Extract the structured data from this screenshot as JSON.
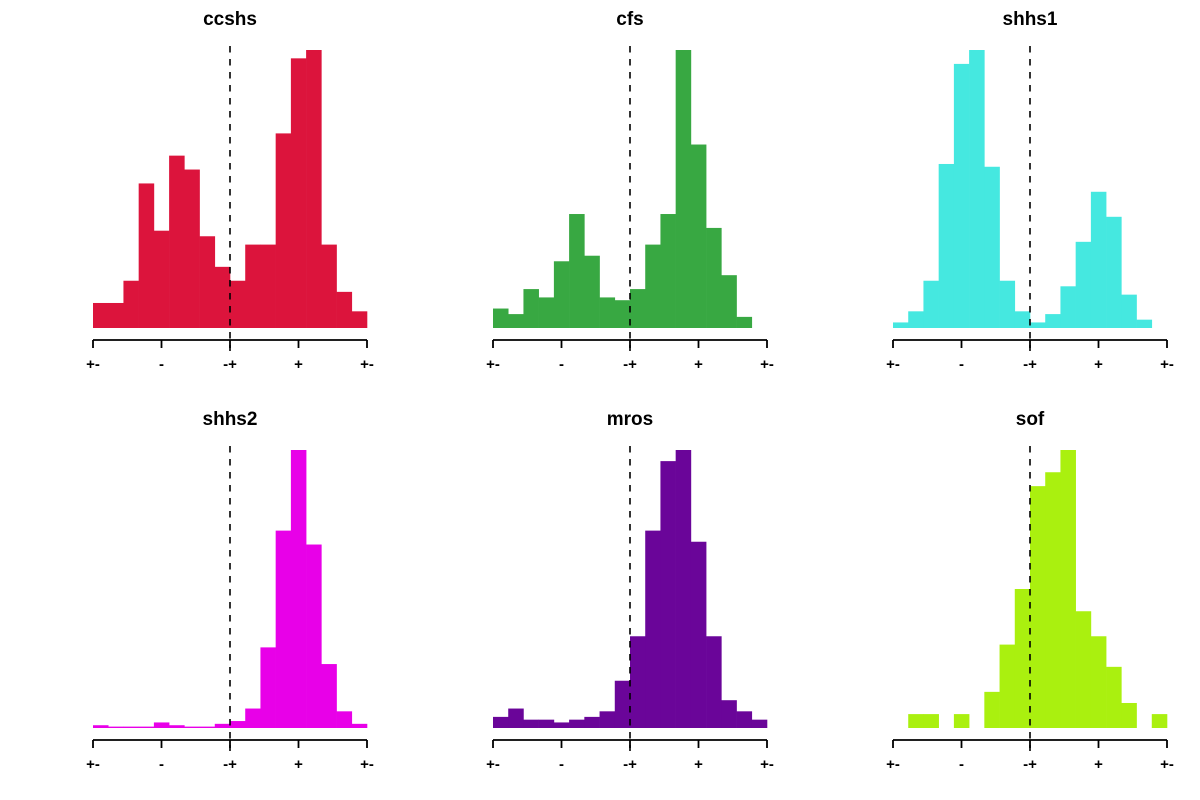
{
  "figure": {
    "background_color": "#ffffff",
    "axis_color": "#000000",
    "text_color": "#000000",
    "layout": "2x3 grid of histograms"
  },
  "chart_data": [
    {
      "type": "bar",
      "title": "ccshs",
      "color": "#DC143C",
      "bins": 18,
      "values": [
        9,
        9,
        17,
        52,
        35,
        62,
        57,
        33,
        22,
        17,
        30,
        30,
        70,
        97,
        100,
        30,
        13,
        6
      ],
      "ylim": [
        0,
        100
      ],
      "xlabel": "",
      "ylabel": "",
      "x_tick_labels": [
        "+-",
        "-",
        "-+",
        "+",
        "+-"
      ],
      "ref_line_at_label": "-+",
      "ref_line_style": "dashed",
      "grid": "off",
      "legend": "none"
    },
    {
      "type": "bar",
      "title": "cfs",
      "color": "#38A842",
      "bins": 18,
      "values": [
        7,
        5,
        14,
        11,
        24,
        41,
        26,
        11,
        10,
        14,
        30,
        41,
        100,
        66,
        36,
        19,
        4,
        0
      ],
      "ylim": [
        0,
        100
      ],
      "xlabel": "",
      "ylabel": "",
      "x_tick_labels": [
        "+-",
        "-",
        "-+",
        "+",
        "+-"
      ],
      "ref_line_at_label": "-+",
      "ref_line_style": "dashed",
      "grid": "off",
      "legend": "none"
    },
    {
      "type": "bar",
      "title": "shhs1",
      "color": "#45E8E0",
      "bins": 18,
      "values": [
        2,
        6,
        17,
        59,
        95,
        100,
        58,
        17,
        6,
        2,
        5,
        15,
        31,
        49,
        40,
        12,
        3,
        0
      ],
      "ylim": [
        0,
        100
      ],
      "xlabel": "",
      "ylabel": "",
      "x_tick_labels": [
        "+-",
        "-",
        "-+",
        "+",
        "+-"
      ],
      "ref_line_at_label": "-+",
      "ref_line_style": "dashed",
      "grid": "off",
      "legend": "none"
    },
    {
      "type": "bar",
      "title": "shhs2",
      "color": "#E800E8",
      "bins": 18,
      "values": [
        1,
        0.5,
        0.5,
        0.5,
        2,
        1,
        0.5,
        0.5,
        1.5,
        2.5,
        7,
        29,
        71,
        100,
        66,
        23,
        6,
        1.5
      ],
      "ylim": [
        0,
        100
      ],
      "xlabel": "",
      "ylabel": "",
      "x_tick_labels": [
        "+-",
        "-",
        "-+",
        "+",
        "+-"
      ],
      "ref_line_at_label": "-+",
      "ref_line_style": "dashed",
      "grid": "off",
      "legend": "none"
    },
    {
      "type": "bar",
      "title": "mros",
      "color": "#6A0599",
      "bins": 18,
      "values": [
        4,
        7,
        3,
        3,
        2,
        3,
        4,
        6,
        17,
        33,
        71,
        96,
        100,
        67,
        33,
        10,
        6,
        3
      ],
      "ylim": [
        0,
        100
      ],
      "xlabel": "",
      "ylabel": "",
      "x_tick_labels": [
        "+-",
        "-",
        "-+",
        "+",
        "+-"
      ],
      "ref_line_at_label": "-+",
      "ref_line_style": "dashed",
      "grid": "off",
      "legend": "none"
    },
    {
      "type": "bar",
      "title": "sof",
      "color": "#AAF00F",
      "bins": 18,
      "values": [
        0,
        5,
        5,
        0,
        5,
        0,
        13,
        30,
        50,
        87,
        92,
        100,
        42,
        33,
        22,
        9,
        0,
        5
      ],
      "ylim": [
        0,
        100
      ],
      "xlabel": "",
      "ylabel": "",
      "x_tick_labels": [
        "+-",
        "-",
        "-+",
        "+",
        "+-"
      ],
      "ref_line_at_label": "-+",
      "ref_line_style": "dashed",
      "grid": "off",
      "legend": "none"
    }
  ]
}
